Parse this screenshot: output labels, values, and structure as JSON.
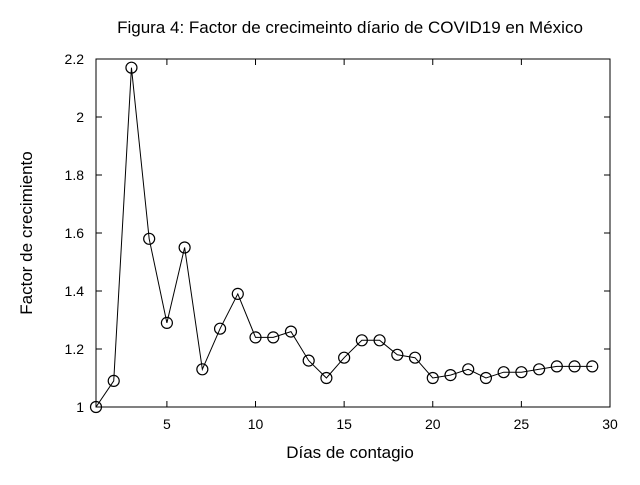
{
  "chart_data": {
    "type": "line",
    "title": "Figura 4: Factor de crecimeinto díario de COVID19 en México",
    "xlabel": "Días de contagio",
    "ylabel": "Factor de crecimiento",
    "xlim": [
      1,
      30
    ],
    "ylim": [
      1,
      2.2
    ],
    "xticks": [
      5,
      10,
      15,
      20,
      25,
      30
    ],
    "xtick_labels": [
      "5",
      "10",
      "15",
      "20",
      "25",
      "30"
    ],
    "yticks": [
      1,
      1.2,
      1.4,
      1.6,
      1.8,
      2,
      2.2
    ],
    "ytick_labels": [
      "1",
      "1.2",
      "1.4",
      "1.6",
      "1.8",
      "2",
      "2.2"
    ],
    "grid": false,
    "marker": "open-circle",
    "color": "#000000",
    "x": [
      1,
      2,
      3,
      4,
      5,
      6,
      7,
      8,
      9,
      10,
      11,
      12,
      13,
      14,
      15,
      16,
      17,
      18,
      19,
      20,
      21,
      22,
      23,
      24,
      25,
      26,
      27,
      28,
      29
    ],
    "values": [
      1.0,
      1.09,
      2.17,
      1.58,
      1.29,
      1.55,
      1.13,
      1.27,
      1.39,
      1.24,
      1.24,
      1.26,
      1.16,
      1.1,
      1.17,
      1.23,
      1.23,
      1.18,
      1.17,
      1.1,
      1.11,
      1.13,
      1.1,
      1.12,
      1.12,
      1.13,
      1.14,
      1.14,
      1.14
    ]
  }
}
